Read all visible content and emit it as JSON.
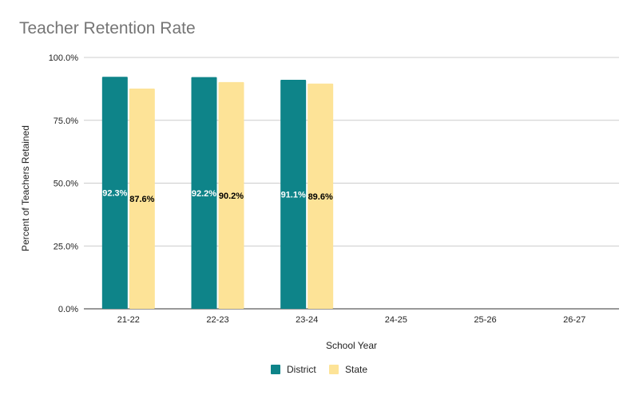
{
  "chart_data": {
    "type": "bar",
    "title": "Teacher Retention Rate",
    "xlabel": "School Year",
    "ylabel": "Percent of Teachers Retained",
    "categories": [
      "21-22",
      "22-23",
      "23-24",
      "24-25",
      "25-26",
      "26-27"
    ],
    "series": [
      {
        "name": "District",
        "color": "#0e8489",
        "values": [
          92.3,
          92.2,
          91.1,
          null,
          null,
          null
        ],
        "labels": [
          "92.3%",
          "92.2%",
          "91.1%",
          "",
          "",
          ""
        ]
      },
      {
        "name": "State",
        "color": "#fde397",
        "values": [
          87.6,
          90.2,
          89.6,
          null,
          null,
          null
        ],
        "labels": [
          "87.6%",
          "90.2%",
          "89.6%",
          "",
          "",
          ""
        ]
      }
    ],
    "ylim": [
      0,
      100
    ],
    "yticks": [
      0,
      25,
      50,
      75,
      100
    ],
    "ytick_labels": [
      "0.0%",
      "25.0%",
      "50.0%",
      "75.0%",
      "100.0%"
    ],
    "grid": true,
    "legend_position": "bottom"
  }
}
